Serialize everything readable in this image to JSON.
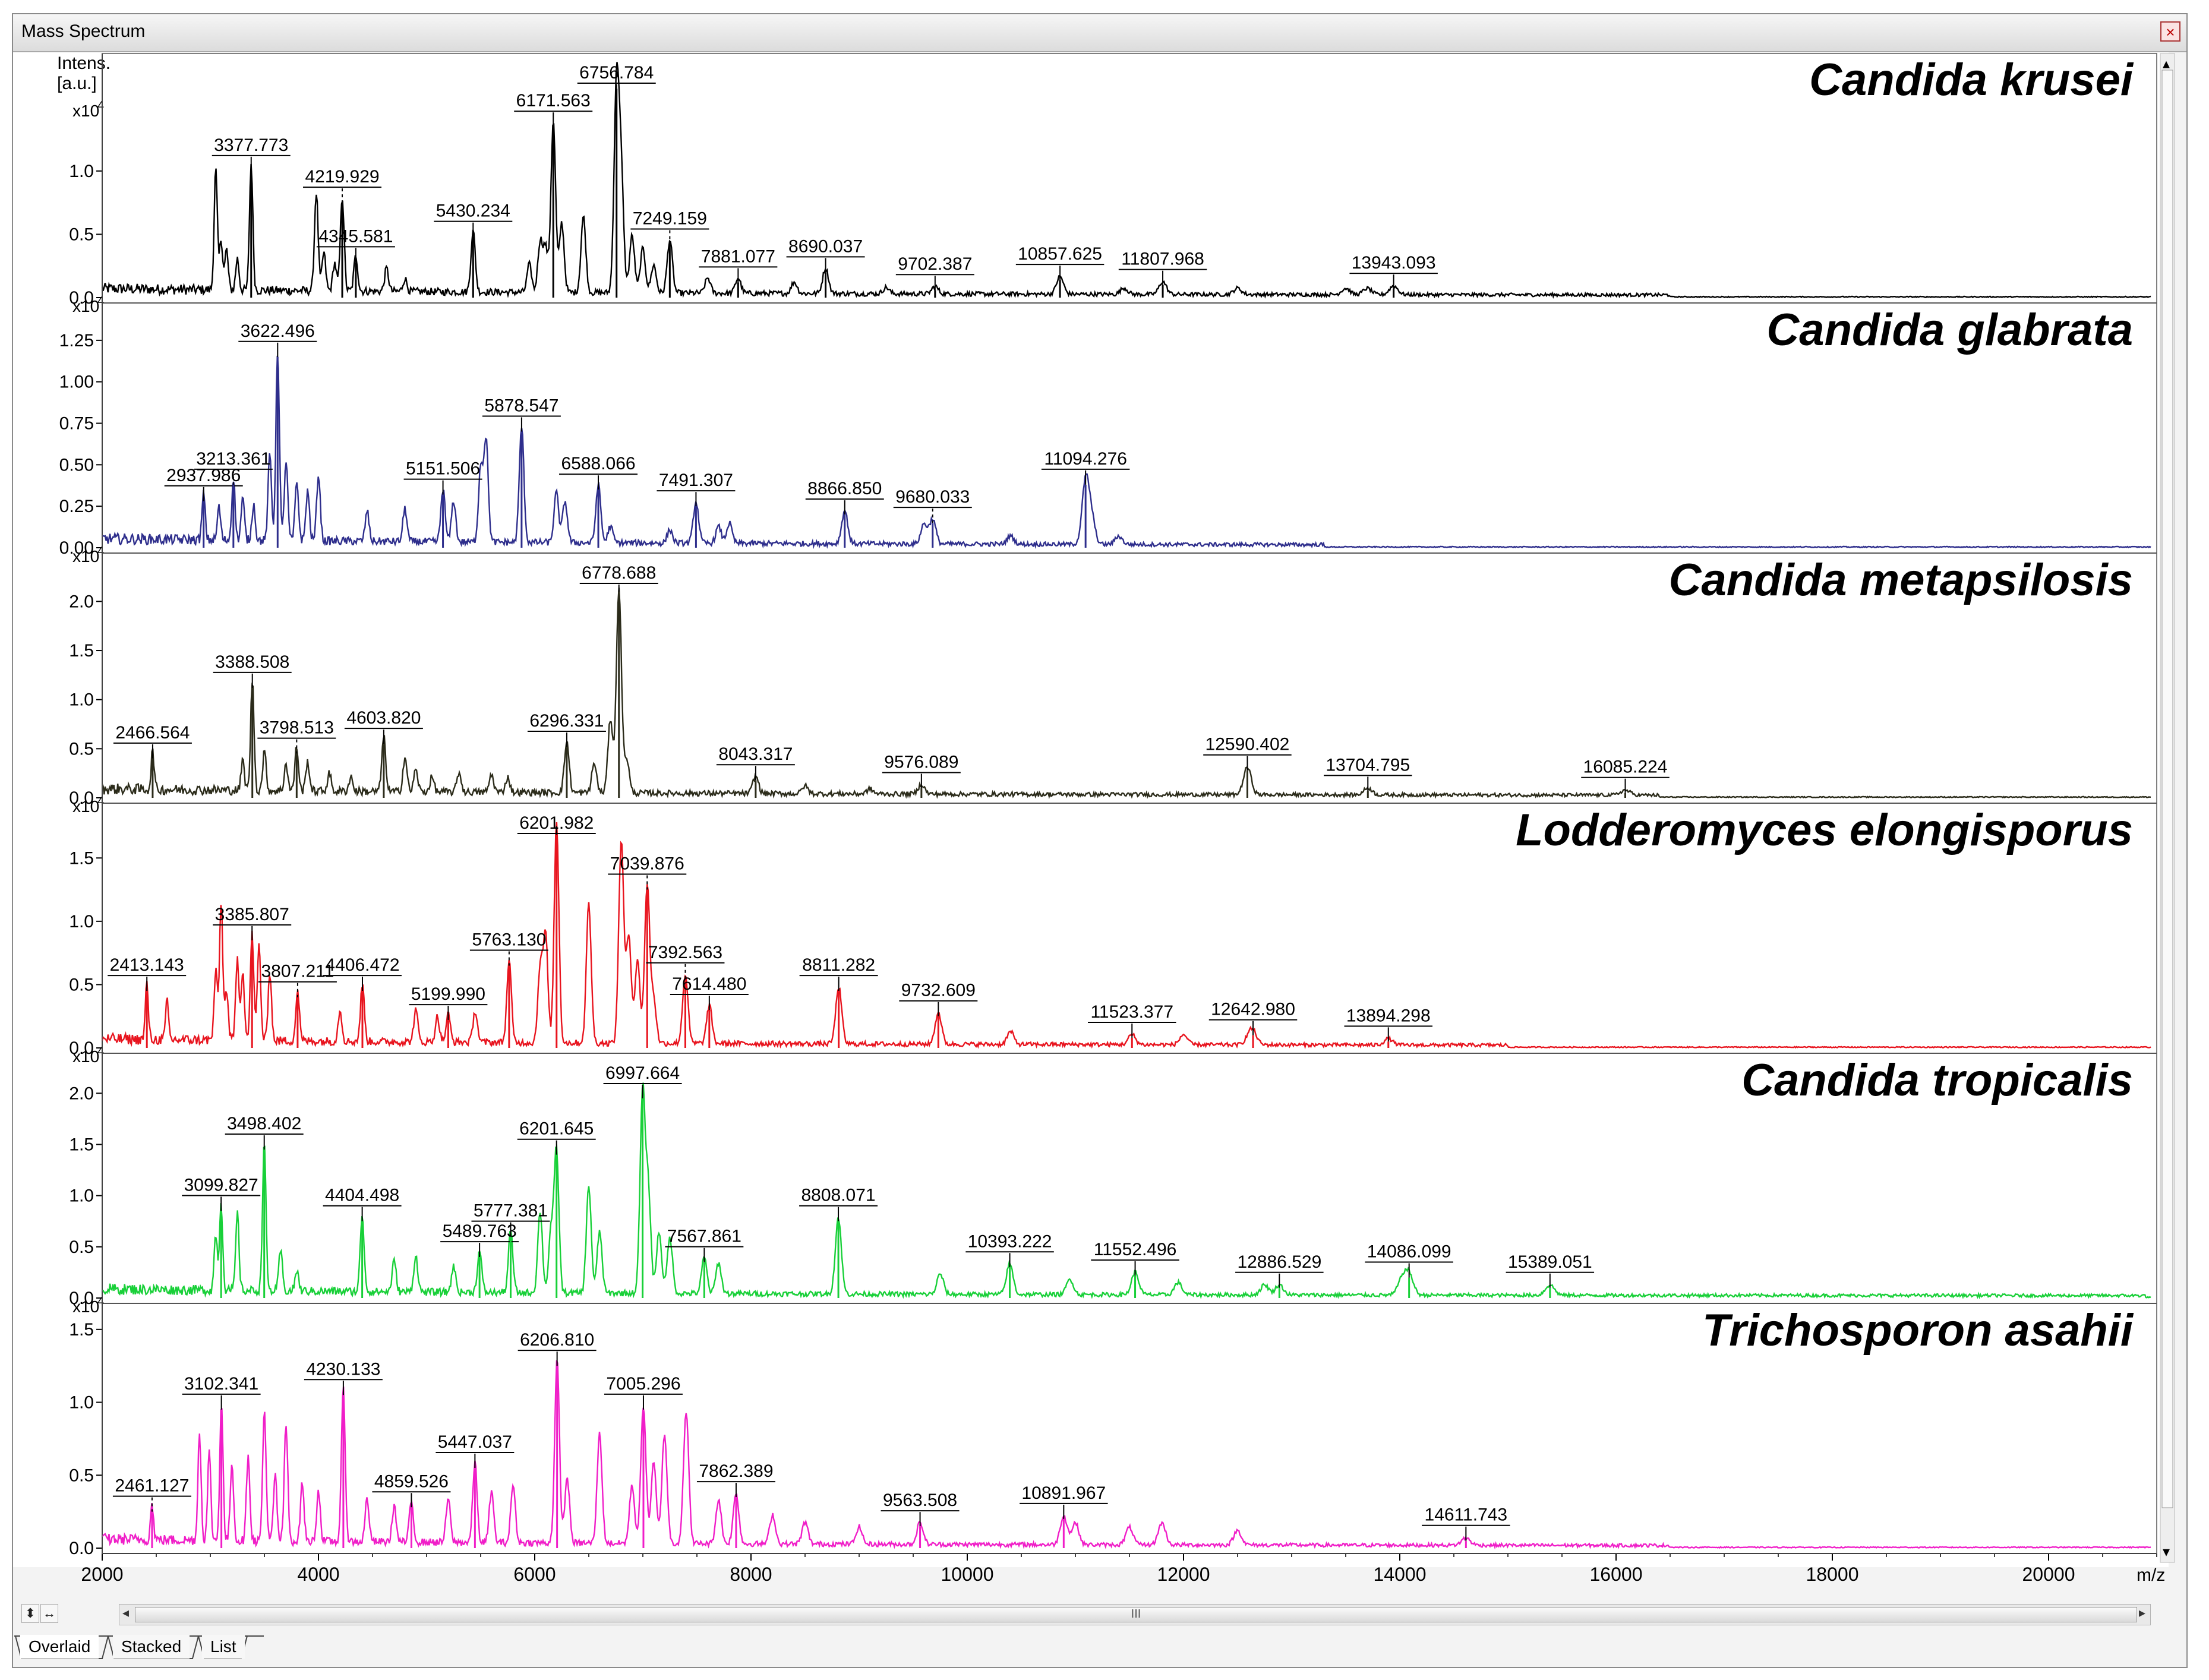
{
  "window": {
    "title": "Mass Spectrum",
    "close_icon": "close-icon"
  },
  "axis": {
    "intensity_label": [
      "Intens.",
      "[a.u.]"
    ],
    "multiplier_base": "x10",
    "multiplier_exp": "4",
    "x_label": "m/z",
    "x_ticks": [
      "2000",
      "4000",
      "6000",
      "8000",
      "10000",
      "12000",
      "14000",
      "16000",
      "18000",
      "20000"
    ]
  },
  "scrollbar": {
    "thumb_grip": "III",
    "left_arrow": "◂",
    "right_arrow": "▸"
  },
  "zoom_controls": {
    "vertical": "⬍",
    "horizontal": "↔"
  },
  "tabs": [
    {
      "label": "Overlaid"
    },
    {
      "label": "Stacked"
    },
    {
      "label": "List"
    }
  ],
  "chart_data": {
    "type": "line",
    "xlabel": "m/z",
    "ylabel": "Intens. [a.u.]",
    "xlim": [
      2000,
      21000
    ],
    "x_ticks": [
      2000,
      4000,
      6000,
      8000,
      10000,
      12000,
      14000,
      16000,
      18000,
      20000
    ],
    "y_multiplier": "x10^4",
    "grid": false,
    "panels": [
      {
        "name": "Candida krusei",
        "color": "#000000",
        "ylim": [
          0,
          1.9
        ],
        "y_ticks": [
          0.0,
          0.5,
          1.0
        ],
        "y_tick_labels": [
          "0.0",
          "0.5",
          "1.0"
        ],
        "peaks": [
          {
            "mz": 3377.773,
            "h": 1.0,
            "label": "3377.773"
          },
          {
            "mz": 4219.929,
            "h": 0.75,
            "label": "4219.929",
            "dashed": true
          },
          {
            "mz": 4345.581,
            "h": 0.28,
            "label": "4345.581"
          },
          {
            "mz": 5430.234,
            "h": 0.48,
            "label": "5430.234"
          },
          {
            "mz": 6171.563,
            "h": 1.35,
            "label": "6171.563"
          },
          {
            "mz": 6756.784,
            "h": 1.65,
            "label": "6756.784"
          },
          {
            "mz": 7249.159,
            "h": 0.42,
            "label": "7249.159",
            "dashed": true
          },
          {
            "mz": 7881.077,
            "h": 0.12,
            "label": "7881.077"
          },
          {
            "mz": 8690.037,
            "h": 0.2,
            "label": "8690.037"
          },
          {
            "mz": 9702.387,
            "h": 0.06,
            "label": "9702.387"
          },
          {
            "mz": 10857.625,
            "h": 0.14,
            "label": "10857.625"
          },
          {
            "mz": 11807.968,
            "h": 0.1,
            "label": "11807.968"
          },
          {
            "mz": 13943.093,
            "h": 0.07,
            "label": "13943.093"
          }
        ],
        "minor_peaks": [
          [
            3050,
            0.95
          ],
          [
            3100,
            0.4
          ],
          [
            3150,
            0.32
          ],
          [
            3250,
            0.25
          ],
          [
            3980,
            0.78
          ],
          [
            4050,
            0.3
          ],
          [
            4150,
            0.22
          ],
          [
            4630,
            0.18
          ],
          [
            4800,
            0.1
          ],
          [
            5950,
            0.22
          ],
          [
            6050,
            0.4
          ],
          [
            6100,
            0.35
          ],
          [
            6250,
            0.55
          ],
          [
            6450,
            0.6
          ],
          [
            6800,
            0.9
          ],
          [
            6900,
            0.45
          ],
          [
            7000,
            0.35
          ],
          [
            7100,
            0.22
          ],
          [
            7600,
            0.12
          ],
          [
            8400,
            0.09
          ],
          [
            9250,
            0.05
          ],
          [
            11450,
            0.05
          ],
          [
            12500,
            0.05
          ],
          [
            13500,
            0.05
          ],
          [
            13700,
            0.05
          ]
        ]
      },
      {
        "name": "Candida glabrata",
        "color": "#2e2e8c",
        "ylim": [
          0,
          1.45
        ],
        "y_ticks": [
          0.0,
          0.25,
          0.5,
          0.75,
          1.0,
          1.25
        ],
        "y_tick_labels": [
          "0.00",
          "0.25",
          "0.50",
          "0.75",
          "1.00",
          "1.25"
        ],
        "peaks": [
          {
            "mz": 2937.986,
            "h": 0.28,
            "label": "2937.986"
          },
          {
            "mz": 3213.361,
            "h": 0.38,
            "label": "3213.361",
            "dashed": true
          },
          {
            "mz": 3622.496,
            "h": 1.15,
            "label": "3622.496"
          },
          {
            "mz": 5151.506,
            "h": 0.32,
            "label": "5151.506"
          },
          {
            "mz": 5878.547,
            "h": 0.7,
            "label": "5878.547"
          },
          {
            "mz": 6588.066,
            "h": 0.35,
            "label": "6588.066"
          },
          {
            "mz": 7491.307,
            "h": 0.25,
            "label": "7491.307"
          },
          {
            "mz": 8866.85,
            "h": 0.2,
            "label": "8866.850"
          },
          {
            "mz": 9680.033,
            "h": 0.15,
            "label": "9680.033",
            "dashed": true
          },
          {
            "mz": 11094.276,
            "h": 0.38,
            "label": "11094.276"
          }
        ],
        "minor_peaks": [
          [
            3080,
            0.2
          ],
          [
            3300,
            0.25
          ],
          [
            3400,
            0.22
          ],
          [
            3550,
            0.52
          ],
          [
            3700,
            0.48
          ],
          [
            3800,
            0.35
          ],
          [
            3900,
            0.3
          ],
          [
            4000,
            0.4
          ],
          [
            4450,
            0.18
          ],
          [
            4800,
            0.2
          ],
          [
            5250,
            0.25
          ],
          [
            5500,
            0.45
          ],
          [
            5550,
            0.62
          ],
          [
            6200,
            0.3
          ],
          [
            6280,
            0.25
          ],
          [
            6700,
            0.1
          ],
          [
            7250,
            0.08
          ],
          [
            7700,
            0.1
          ],
          [
            7800,
            0.12
          ],
          [
            9600,
            0.12
          ],
          [
            10400,
            0.05
          ],
          [
            11150,
            0.15
          ],
          [
            11400,
            0.05
          ]
        ]
      },
      {
        "name": "Candida metapsilosis",
        "color": "#2b2b1a",
        "ylim": [
          0,
          2.45
        ],
        "y_ticks": [
          0.0,
          0.5,
          1.0,
          1.5,
          2.0
        ],
        "y_tick_labels": [
          "0.0",
          "0.5",
          "1.0",
          "1.5",
          "2.0"
        ],
        "peaks": [
          {
            "mz": 2466.564,
            "h": 0.4,
            "label": "2466.564"
          },
          {
            "mz": 3388.508,
            "h": 1.12,
            "label": "3388.508"
          },
          {
            "mz": 3798.513,
            "h": 0.45,
            "label": "3798.513",
            "dashed": true
          },
          {
            "mz": 4603.82,
            "h": 0.55,
            "label": "4603.820"
          },
          {
            "mz": 6296.331,
            "h": 0.52,
            "label": "6296.331"
          },
          {
            "mz": 6778.688,
            "h": 2.1,
            "label": "6778.688"
          },
          {
            "mz": 8043.317,
            "h": 0.18,
            "label": "8043.317"
          },
          {
            "mz": 9576.089,
            "h": 0.1,
            "label": "9576.089"
          },
          {
            "mz": 12590.402,
            "h": 0.28,
            "label": "12590.402"
          },
          {
            "mz": 13704.795,
            "h": 0.07,
            "label": "13704.795"
          },
          {
            "mz": 16085.224,
            "h": 0.05,
            "label": "16085.224"
          }
        ],
        "minor_peaks": [
          [
            3300,
            0.3
          ],
          [
            3500,
            0.4
          ],
          [
            3700,
            0.28
          ],
          [
            3900,
            0.3
          ],
          [
            4100,
            0.18
          ],
          [
            4300,
            0.15
          ],
          [
            4800,
            0.35
          ],
          [
            4900,
            0.22
          ],
          [
            5050,
            0.15
          ],
          [
            5300,
            0.2
          ],
          [
            5600,
            0.18
          ],
          [
            5750,
            0.15
          ],
          [
            6550,
            0.3
          ],
          [
            6700,
            0.75
          ],
          [
            6850,
            0.35
          ],
          [
            8500,
            0.08
          ],
          [
            9100,
            0.05
          ]
        ]
      },
      {
        "name": "Lodderomyces elongisporus",
        "color": "#e8141e",
        "ylim": [
          0,
          1.9
        ],
        "y_ticks": [
          0.0,
          0.5,
          1.0,
          1.5
        ],
        "y_tick_labels": [
          "0.0",
          "0.5",
          "1.0",
          "1.5"
        ],
        "peaks": [
          {
            "mz": 2413.143,
            "h": 0.45,
            "label": "2413.143"
          },
          {
            "mz": 3385.807,
            "h": 0.85,
            "label": "3385.807"
          },
          {
            "mz": 3807.211,
            "h": 0.4,
            "label": "3807.211",
            "dashed": true
          },
          {
            "mz": 4406.472,
            "h": 0.45,
            "label": "4406.472"
          },
          {
            "mz": 5199.99,
            "h": 0.22,
            "label": "5199.990"
          },
          {
            "mz": 5763.13,
            "h": 0.65,
            "label": "5763.130",
            "dashed": true
          },
          {
            "mz": 6201.982,
            "h": 1.75,
            "label": "6201.982"
          },
          {
            "mz": 7039.876,
            "h": 1.25,
            "label": "7039.876",
            "dashed": true
          },
          {
            "mz": 7392.563,
            "h": 0.55,
            "label": "7392.563",
            "dashed": true
          },
          {
            "mz": 7614.48,
            "h": 0.3,
            "label": "7614.480"
          },
          {
            "mz": 8811.282,
            "h": 0.45,
            "label": "8811.282"
          },
          {
            "mz": 9732.609,
            "h": 0.25,
            "label": "9732.609"
          },
          {
            "mz": 11523.377,
            "h": 0.08,
            "label": "11523.377"
          },
          {
            "mz": 12642.98,
            "h": 0.1,
            "label": "12642.980"
          },
          {
            "mz": 13894.298,
            "h": 0.05,
            "label": "13894.298"
          }
        ],
        "minor_peaks": [
          [
            2600,
            0.3
          ],
          [
            3050,
            0.55
          ],
          [
            3100,
            1.1
          ],
          [
            3150,
            0.4
          ],
          [
            3250,
            0.65
          ],
          [
            3300,
            0.55
          ],
          [
            3450,
            0.75
          ],
          [
            3550,
            0.55
          ],
          [
            4200,
            0.25
          ],
          [
            4900,
            0.25
          ],
          [
            5100,
            0.2
          ],
          [
            5450,
            0.25
          ],
          [
            6050,
            0.6
          ],
          [
            6100,
            0.85
          ],
          [
            6500,
            1.1
          ],
          [
            6800,
            1.6
          ],
          [
            6870,
            0.85
          ],
          [
            6950,
            0.65
          ],
          [
            7100,
            0.35
          ],
          [
            10400,
            0.1
          ],
          [
            12000,
            0.08
          ],
          [
            12600,
            0.05
          ]
        ]
      },
      {
        "name": "Candida tropicalis",
        "color": "#18d038",
        "ylim": [
          0,
          2.35
        ],
        "y_ticks": [
          0.0,
          0.5,
          1.0,
          1.5,
          2.0
        ],
        "y_tick_labels": [
          "0.0",
          "0.5",
          "1.0",
          "1.5",
          "2.0"
        ],
        "peaks": [
          {
            "mz": 3099.827,
            "h": 0.85,
            "label": "3099.827"
          },
          {
            "mz": 3498.402,
            "h": 1.45,
            "label": "3498.402"
          },
          {
            "mz": 4404.498,
            "h": 0.75,
            "label": "4404.498"
          },
          {
            "mz": 5489.763,
            "h": 0.4,
            "label": "5489.763"
          },
          {
            "mz": 5777.381,
            "h": 0.6,
            "label": "5777.381"
          },
          {
            "mz": 6201.645,
            "h": 1.4,
            "label": "6201.645"
          },
          {
            "mz": 6997.664,
            "h": 1.95,
            "label": "6997.664"
          },
          {
            "mz": 7567.861,
            "h": 0.35,
            "label": "7567.861"
          },
          {
            "mz": 8808.071,
            "h": 0.75,
            "label": "8808.071"
          },
          {
            "mz": 10393.222,
            "h": 0.3,
            "label": "10393.222"
          },
          {
            "mz": 11552.496,
            "h": 0.22,
            "label": "11552.496"
          },
          {
            "mz": 12886.529,
            "h": 0.1,
            "label": "12886.529"
          },
          {
            "mz": 14086.099,
            "h": 0.2,
            "label": "14086.099"
          },
          {
            "mz": 15389.051,
            "h": 0.1,
            "label": "15389.051"
          }
        ],
        "minor_peaks": [
          [
            3050,
            0.55
          ],
          [
            3250,
            0.75
          ],
          [
            3650,
            0.4
          ],
          [
            3800,
            0.2
          ],
          [
            4700,
            0.3
          ],
          [
            4900,
            0.35
          ],
          [
            5250,
            0.25
          ],
          [
            6050,
            0.8
          ],
          [
            6150,
            0.6
          ],
          [
            6500,
            1.05
          ],
          [
            6600,
            0.6
          ],
          [
            7050,
            1.0
          ],
          [
            7150,
            0.6
          ],
          [
            7250,
            0.55
          ],
          [
            7700,
            0.3
          ],
          [
            9750,
            0.2
          ],
          [
            10950,
            0.15
          ],
          [
            11950,
            0.12
          ],
          [
            12750,
            0.1
          ],
          [
            14020,
            0.15
          ]
        ]
      },
      {
        "name": "Trichosporon asahii",
        "color": "#f01ec8",
        "ylim": [
          0,
          1.65
        ],
        "y_ticks": [
          0.0,
          0.5,
          1.0,
          1.5
        ],
        "y_tick_labels": [
          "0.0",
          "0.5",
          "1.0",
          "1.5"
        ],
        "peaks": [
          {
            "mz": 2461.127,
            "h": 0.25,
            "label": "2461.127",
            "dashed": true
          },
          {
            "mz": 3102.341,
            "h": 0.95,
            "label": "3102.341"
          },
          {
            "mz": 4230.133,
            "h": 1.05,
            "label": "4230.133"
          },
          {
            "mz": 4859.526,
            "h": 0.28,
            "label": "4859.526"
          },
          {
            "mz": 5447.037,
            "h": 0.55,
            "label": "5447.037"
          },
          {
            "mz": 6206.81,
            "h": 1.25,
            "label": "6206.810"
          },
          {
            "mz": 7005.296,
            "h": 0.95,
            "label": "7005.296"
          },
          {
            "mz": 7862.389,
            "h": 0.35,
            "label": "7862.389"
          },
          {
            "mz": 9563.508,
            "h": 0.15,
            "label": "9563.508"
          },
          {
            "mz": 10891.967,
            "h": 0.2,
            "label": "10891.967"
          },
          {
            "mz": 14611.743,
            "h": 0.05,
            "label": "14611.743"
          }
        ],
        "minor_peaks": [
          [
            2900,
            0.75
          ],
          [
            2990,
            0.6
          ],
          [
            3200,
            0.55
          ],
          [
            3350,
            0.6
          ],
          [
            3500,
            0.9
          ],
          [
            3600,
            0.45
          ],
          [
            3700,
            0.8
          ],
          [
            3850,
            0.4
          ],
          [
            4000,
            0.35
          ],
          [
            4450,
            0.3
          ],
          [
            4700,
            0.25
          ],
          [
            5200,
            0.3
          ],
          [
            5600,
            0.35
          ],
          [
            5800,
            0.4
          ],
          [
            6300,
            0.45
          ],
          [
            6600,
            0.75
          ],
          [
            6900,
            0.4
          ],
          [
            7100,
            0.55
          ],
          [
            7200,
            0.75
          ],
          [
            7400,
            0.9
          ],
          [
            7700,
            0.3
          ],
          [
            8200,
            0.2
          ],
          [
            8500,
            0.15
          ],
          [
            9000,
            0.12
          ],
          [
            11000,
            0.15
          ],
          [
            11500,
            0.12
          ],
          [
            11800,
            0.15
          ],
          [
            12500,
            0.1
          ]
        ]
      }
    ]
  }
}
